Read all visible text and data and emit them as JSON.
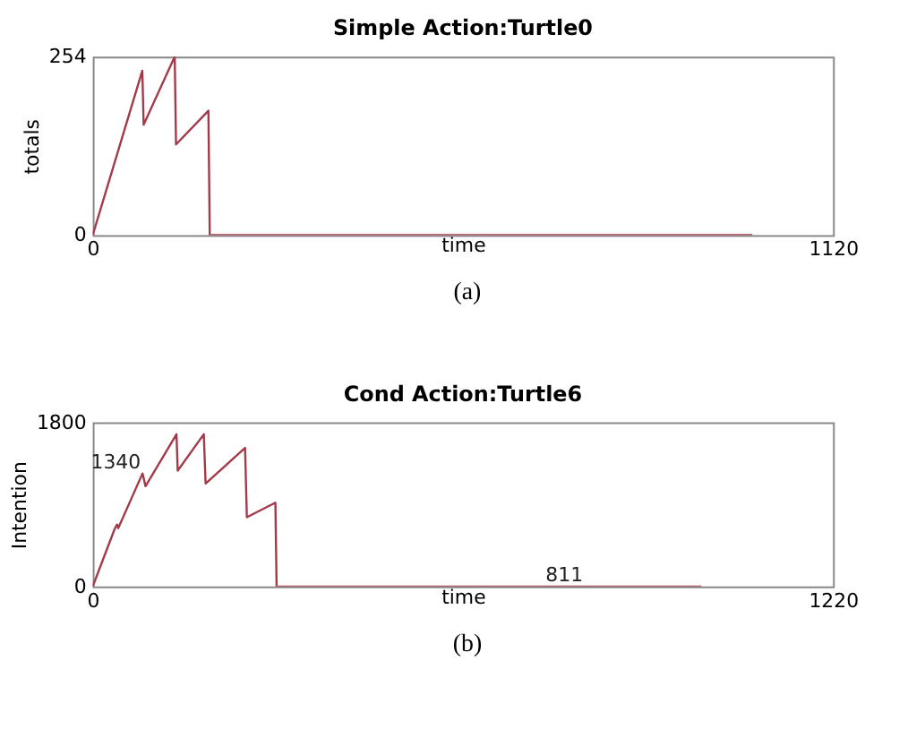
{
  "chart_data": [
    {
      "type": "line",
      "title": "Simple Action:Turtle0",
      "xlabel": "time",
      "ylabel": "totals",
      "series": [
        {
          "color": "#a33a4a",
          "x": [
            0,
            75,
            77,
            124,
            126,
            175,
            177,
            998
          ],
          "values": [
            0,
            234,
            157,
            254,
            129,
            177,
            0,
            0
          ]
        }
      ],
      "xlim": [
        0,
        1120
      ],
      "ylim": [
        0,
        254
      ],
      "xticks": [
        0,
        1120
      ],
      "yticks": [
        0,
        254
      ],
      "grid": false,
      "annotations": [
        "(a)"
      ]
    },
    {
      "type": "line",
      "title": "Cond Action:Turtle6",
      "xlabel": "time",
      "ylabel": "Intention",
      "series": [
        {
          "color": "#a33a4a",
          "x": [
            0,
            36,
            40,
            42,
            82,
            87,
            138,
            140,
            183,
            186,
            251,
            254,
            301,
            303,
            1003
          ],
          "values": [
            0,
            630,
            680,
            640,
            1240,
            1100,
            1670,
            1270,
            1670,
            1130,
            1520,
            760,
            920,
            0,
            0
          ]
        }
      ],
      "xlim": [
        0,
        1220
      ],
      "ylim": [
        0,
        1800
      ],
      "xticks": [
        0,
        1220
      ],
      "yticks": [
        0,
        1800
      ],
      "grid": false,
      "annotations": [
        {
          "text": "1340",
          "x": 82,
          "y": 1240
        },
        {
          "text": "811",
          "x": 811,
          "y": 0
        },
        "(b)"
      ]
    }
  ]
}
